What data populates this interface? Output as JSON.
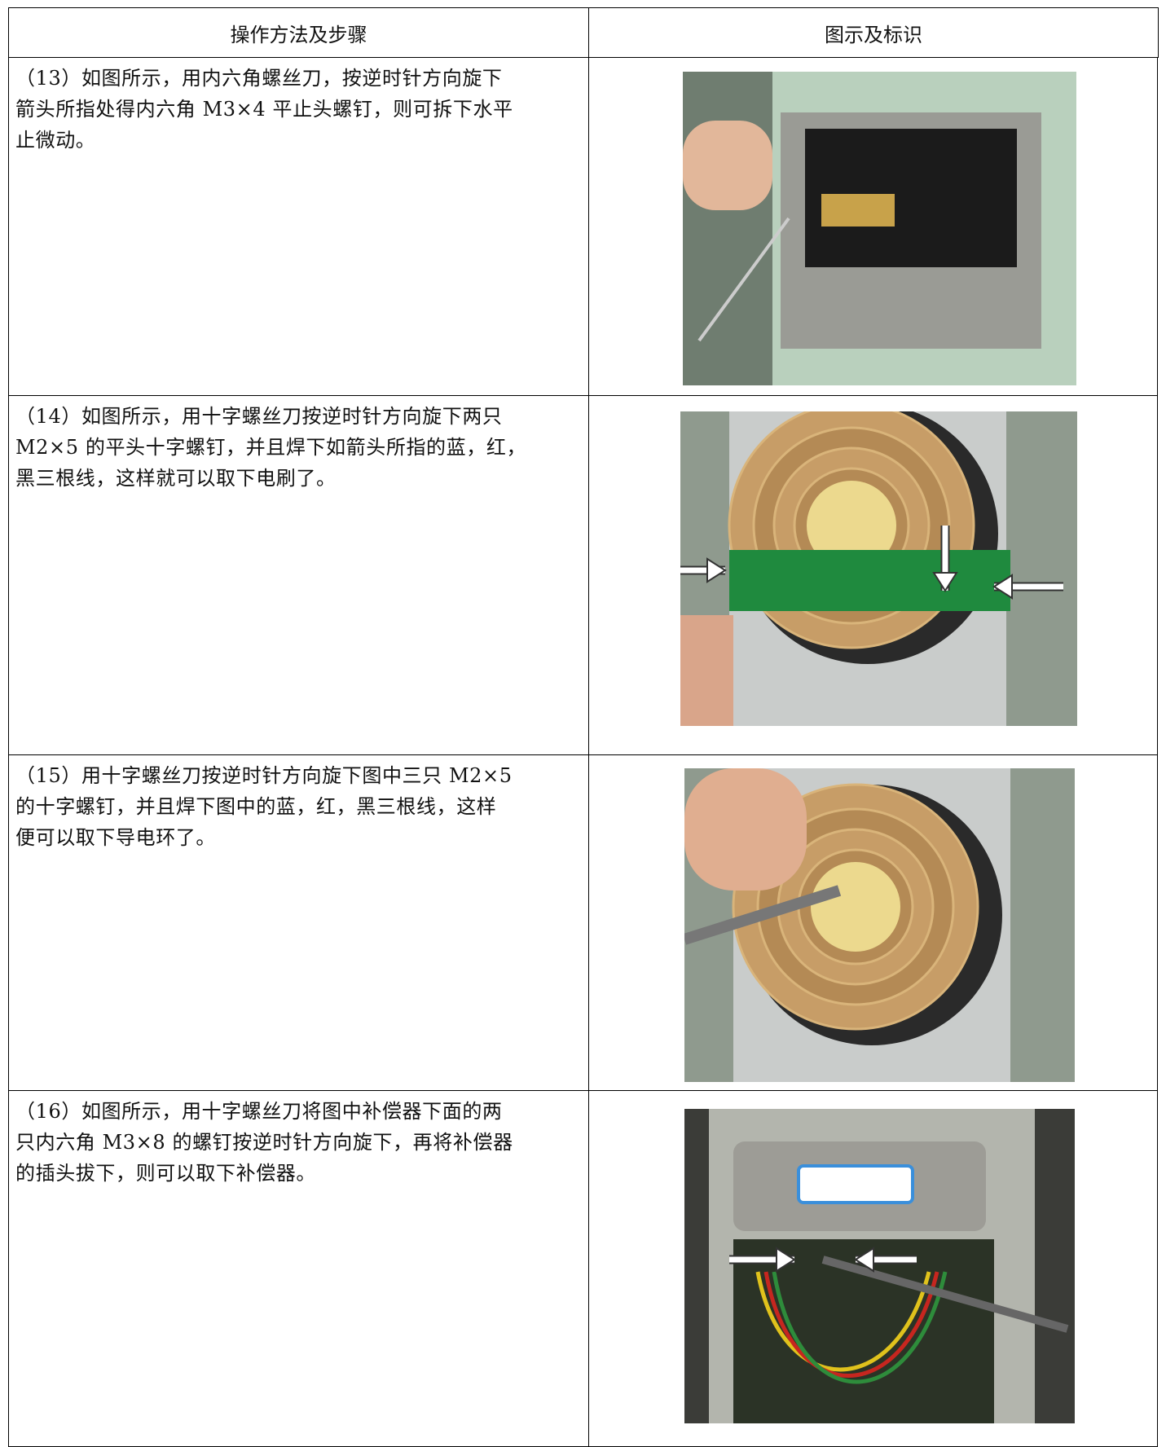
{
  "table": {
    "header": [
      "操作方法及步骤",
      "图示及标识"
    ],
    "rows": [
      {
        "lines": [
          "（13）如图所示，用内六角螺丝刀，按逆时针方向旋下",
          "箭头所指处得内六角 M3×4 平止头螺钉，则可拆下水平",
          "止微动。"
        ]
      },
      {
        "lines": [
          "（14）如图所示，用十字螺丝刀按逆时针方向旋下两只",
          "M2×5 的平头十字螺钉，并且焊下如箭头所指的蓝，红，",
          "黑三根线，这样就可以取下电刷了。"
        ]
      },
      {
        "lines": [
          "（15）用十字螺丝刀按逆时针方向旋下图中三只 M2×5",
          "的十字螺钉，并且焊下图中的蓝，红，黑三根线，这样",
          "便可以取下导电环了。"
        ]
      },
      {
        "lines": [
          "（16）如图所示，用十字螺丝刀将图中补偿器下面的两",
          "只内六角 M3×8 的螺钉按逆时针方向旋下，再将补偿器",
          "的插头拔下，则可以取下补偿器。"
        ]
      }
    ]
  }
}
